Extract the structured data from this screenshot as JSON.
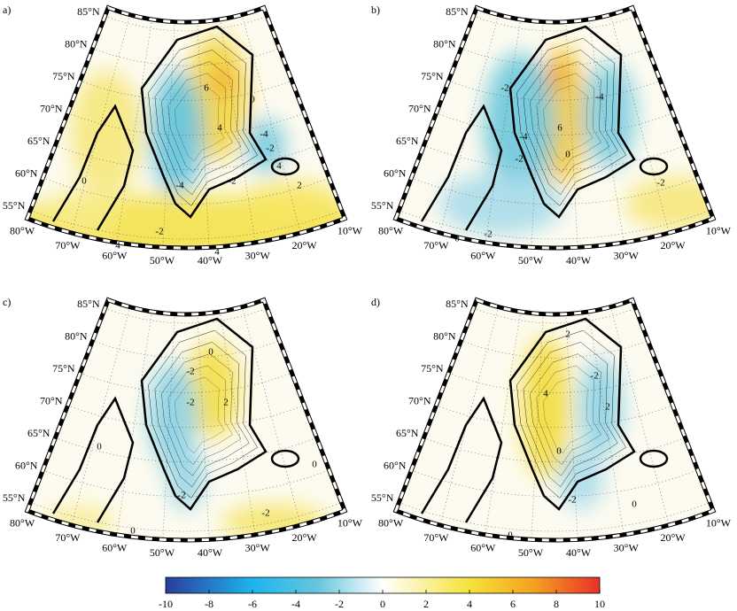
{
  "panels": [
    {
      "label": "a)",
      "contour_labels": [
        "6",
        "0",
        "4",
        "-4",
        "-2",
        "4",
        "-4",
        "-2",
        "2",
        "-2",
        "4",
        "4",
        "0"
      ]
    },
    {
      "label": "b)",
      "contour_labels": [
        "-2",
        "6",
        "-4",
        "-2",
        "0",
        "-4",
        "-2",
        "0",
        "-2"
      ]
    },
    {
      "label": "c)",
      "contour_labels": [
        "0",
        "-2",
        "2",
        "0",
        "-2",
        "-2",
        "0",
        "-2",
        "0"
      ]
    },
    {
      "label": "d)",
      "contour_labels": [
        "2",
        "4",
        "-2",
        "2",
        "0",
        "-2",
        "0",
        "0"
      ]
    }
  ],
  "graticule": {
    "latitudes": [
      "85°N",
      "80°N",
      "75°N",
      "70°N",
      "65°N",
      "60°N",
      "55°N"
    ],
    "longitudes": [
      "80°W",
      "70°W",
      "60°W",
      "50°W",
      "40°W",
      "30°W",
      "20°W",
      "10°W"
    ]
  },
  "colorbar": {
    "lim": [
      -10,
      10
    ],
    "ticks": [
      -10,
      -8,
      -6,
      -4,
      -2,
      0,
      2,
      4,
      6,
      8,
      10
    ]
  }
}
